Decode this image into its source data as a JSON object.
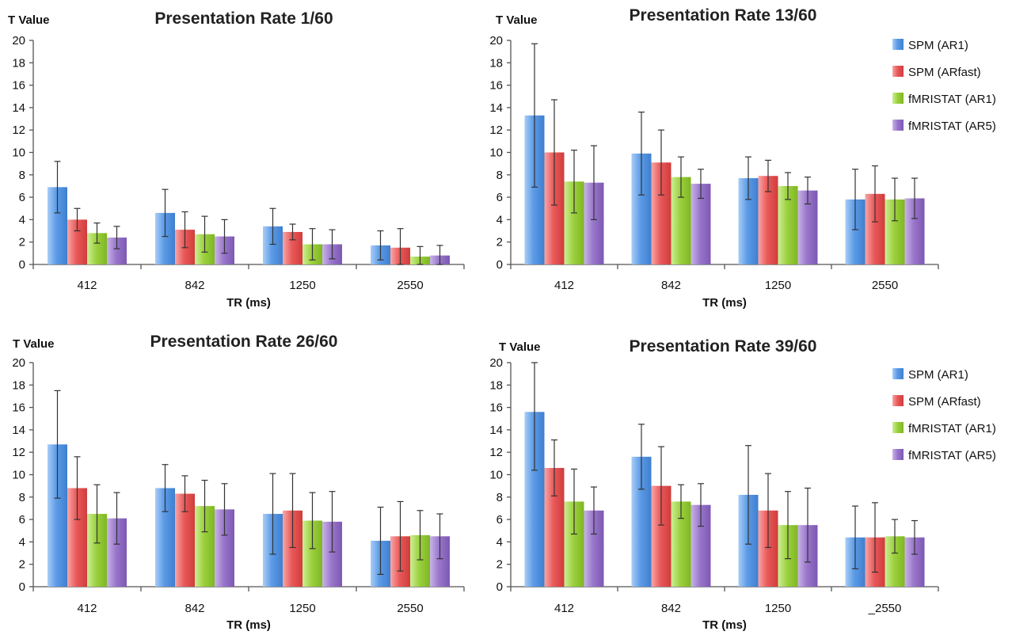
{
  "chart_data": [
    {
      "type": "bar",
      "title": "Presentation Rate 1/60",
      "ylabel": "T Value",
      "xlabel": "TR (ms)",
      "ylim": [
        0,
        20
      ],
      "yticks": [
        0,
        2,
        4,
        6,
        8,
        10,
        12,
        14,
        16,
        18,
        20
      ],
      "categories": [
        "412",
        "842",
        "1250",
        "2550"
      ],
      "legend": "none",
      "series": [
        {
          "name": "SPM (AR1)",
          "values": [
            6.9,
            4.6,
            3.4,
            1.7
          ],
          "errors": [
            2.3,
            2.1,
            1.6,
            1.3
          ]
        },
        {
          "name": "SPM (ARfast)",
          "values": [
            4.0,
            3.1,
            2.9,
            1.5
          ],
          "errors": [
            1.0,
            1.6,
            0.7,
            1.7
          ]
        },
        {
          "name": "fMRISTAT (AR1)",
          "values": [
            2.8,
            2.7,
            1.8,
            0.7
          ],
          "errors": [
            0.9,
            1.6,
            1.4,
            0.9
          ]
        },
        {
          "name": "fMRISTAT (AR5)",
          "values": [
            2.4,
            2.5,
            1.8,
            0.8
          ],
          "errors": [
            1.0,
            1.5,
            1.3,
            0.9
          ]
        }
      ]
    },
    {
      "type": "bar",
      "title": "Presentation Rate 13/60",
      "ylabel": "T Value",
      "xlabel": "TR (ms)",
      "ylim": [
        0,
        20
      ],
      "yticks": [
        0,
        2,
        4,
        6,
        8,
        10,
        12,
        14,
        16,
        18,
        20
      ],
      "categories": [
        "412",
        "842",
        "1250",
        "2550"
      ],
      "legend": "right",
      "series": [
        {
          "name": "SPM (AR1)",
          "values": [
            13.3,
            9.9,
            7.7,
            5.8
          ],
          "errors": [
            6.4,
            3.7,
            1.9,
            2.7
          ]
        },
        {
          "name": "SPM (ARfast)",
          "values": [
            10.0,
            9.1,
            7.9,
            6.3
          ],
          "errors": [
            4.7,
            2.9,
            1.4,
            2.5
          ]
        },
        {
          "name": "fMRISTAT (AR1)",
          "values": [
            7.4,
            7.8,
            7.0,
            5.8
          ],
          "errors": [
            2.8,
            1.8,
            1.2,
            1.9
          ]
        },
        {
          "name": "fMRISTAT (AR5)",
          "values": [
            7.3,
            7.2,
            6.6,
            5.9
          ],
          "errors": [
            3.3,
            1.3,
            1.2,
            1.8
          ]
        }
      ]
    },
    {
      "type": "bar",
      "title": "Presentation Rate 26/60",
      "ylabel": "T Value",
      "xlabel": "TR (ms)",
      "ylim": [
        0,
        20
      ],
      "yticks": [
        0,
        2,
        4,
        6,
        8,
        10,
        12,
        14,
        16,
        18,
        20
      ],
      "categories": [
        "412",
        "842",
        "1250",
        "2550"
      ],
      "legend": "none",
      "series": [
        {
          "name": "SPM (AR1)",
          "values": [
            12.7,
            8.8,
            6.5,
            4.1
          ],
          "errors": [
            4.8,
            2.1,
            3.6,
            3.0
          ]
        },
        {
          "name": "SPM (ARfast)",
          "values": [
            8.8,
            8.3,
            6.8,
            4.5
          ],
          "errors": [
            2.8,
            1.6,
            3.3,
            3.1
          ]
        },
        {
          "name": "fMRISTAT (AR1)",
          "values": [
            6.5,
            7.2,
            5.9,
            4.6
          ],
          "errors": [
            2.6,
            2.3,
            2.5,
            2.2
          ]
        },
        {
          "name": "fMRISTAT (AR5)",
          "values": [
            6.1,
            6.9,
            5.8,
            4.5
          ],
          "errors": [
            2.3,
            2.3,
            2.7,
            2.0
          ]
        }
      ]
    },
    {
      "type": "bar",
      "title": "Presentation Rate 39/60",
      "ylabel": "T Value",
      "xlabel": "TR (ms)",
      "ylim": [
        0,
        20
      ],
      "yticks": [
        0,
        2,
        4,
        6,
        8,
        10,
        12,
        14,
        16,
        18,
        20
      ],
      "categories": [
        "412",
        "842",
        "1250",
        "_2550"
      ],
      "legend": "right",
      "series": [
        {
          "name": "SPM (AR1)",
          "values": [
            15.6,
            11.6,
            8.2,
            4.4
          ],
          "errors": [
            5.2,
            2.9,
            4.4,
            2.8
          ]
        },
        {
          "name": "SPM (ARfast)",
          "values": [
            10.6,
            9.0,
            6.8,
            4.4
          ],
          "errors": [
            2.5,
            3.5,
            3.3,
            3.1
          ]
        },
        {
          "name": "fMRISTAT (AR1)",
          "values": [
            7.6,
            7.6,
            5.5,
            4.5
          ],
          "errors": [
            2.9,
            1.5,
            3.0,
            1.5
          ]
        },
        {
          "name": "fMRISTAT (AR5)",
          "values": [
            6.8,
            7.3,
            5.5,
            4.4
          ],
          "errors": [
            2.1,
            1.9,
            3.3,
            1.5
          ]
        }
      ]
    }
  ],
  "colors": {
    "series": [
      "#5b9be6",
      "#ea5a5a",
      "#9cd13f",
      "#9a77cc"
    ],
    "series_light": [
      "#a9cdf7",
      "#f7a7a7",
      "#cdee96",
      "#c9b4e6"
    ],
    "series_dark": [
      "#3f7fcf",
      "#cf3c3c",
      "#7fb622",
      "#7c58b2"
    ]
  }
}
